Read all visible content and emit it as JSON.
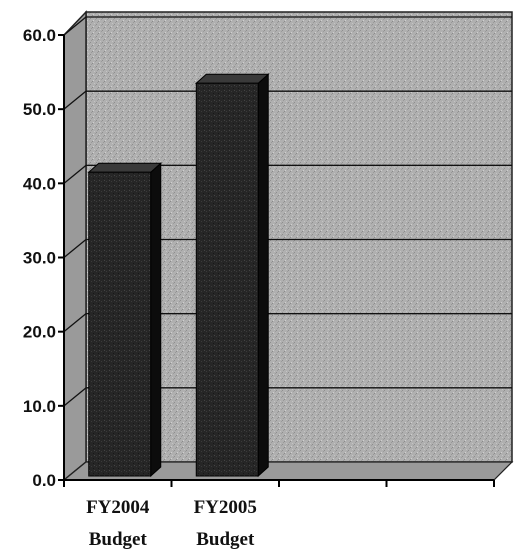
{
  "chart_data": {
    "type": "bar",
    "categories": [
      {
        "line1": "FY2004",
        "line2": "Budget"
      },
      {
        "line1": "FY2005",
        "line2": "Budget"
      },
      {
        "line1": "",
        "line2": ""
      },
      {
        "line1": "",
        "line2": ""
      }
    ],
    "values": [
      41.5,
      53.5,
      null,
      null
    ],
    "yticks": [
      "0.0",
      "10.0",
      "20.0",
      "30.0",
      "40.0",
      "50.0",
      "60.0"
    ],
    "ylim": [
      0,
      60
    ],
    "grid": true,
    "three_d": true,
    "colors": {
      "background": "#aeaeae",
      "bar_front": "#232323",
      "bar_side": "#0c0c0c",
      "bar_top": "#3a3a3a",
      "floor": "#9a9a9a",
      "gridline": "#111111"
    }
  }
}
